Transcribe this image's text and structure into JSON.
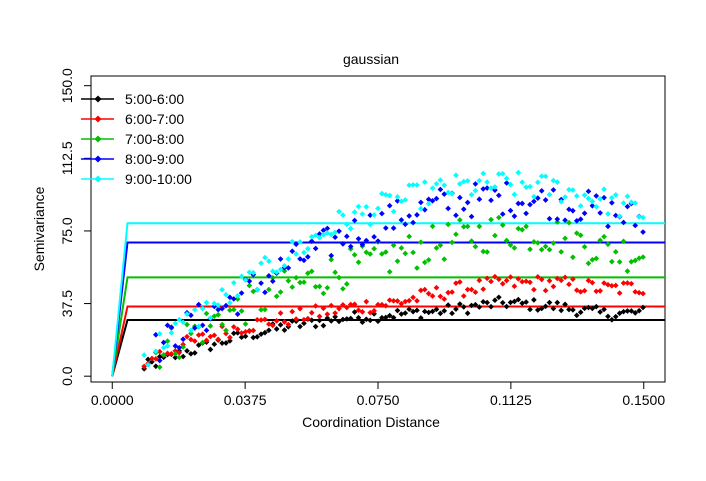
{
  "chart_data": {
    "type": "scatter",
    "title": "gaussian",
    "xlabel": "Coordination Distance",
    "ylabel": "Semivariance",
    "xlim": [
      -0.006,
      0.156
    ],
    "ylim": [
      -3,
      155
    ],
    "x_ticks": [
      0.0,
      0.0375,
      0.075,
      0.1125,
      0.15
    ],
    "x_tick_labels": [
      "0.0000",
      "0.0375",
      "0.0750",
      "0.1125",
      "0.1500"
    ],
    "y_ticks": [
      0.0,
      37.5,
      75.0,
      112.5,
      150.0
    ],
    "y_tick_labels": [
      "0.0",
      "37.5",
      "75.0",
      "112.5",
      "150.0"
    ],
    "grid": false,
    "legend_position": "top-left",
    "series": [
      {
        "name": "5:00-6:00",
        "color": "#000000",
        "sill": 29,
        "knots": [
          [
            0.009,
            5
          ],
          [
            0.02,
            12
          ],
          [
            0.035,
            20
          ],
          [
            0.05,
            26
          ],
          [
            0.065,
            30
          ],
          [
            0.08,
            32
          ],
          [
            0.095,
            34
          ],
          [
            0.11,
            38
          ],
          [
            0.125,
            36
          ],
          [
            0.14,
            32
          ],
          [
            0.15,
            33
          ]
        ],
        "spread": 3.0
      },
      {
        "name": "6:00-7:00",
        "color": "#ff0000",
        "sill": 36,
        "knots": [
          [
            0.009,
            8
          ],
          [
            0.02,
            16
          ],
          [
            0.035,
            25
          ],
          [
            0.05,
            30
          ],
          [
            0.065,
            35
          ],
          [
            0.08,
            38
          ],
          [
            0.095,
            44
          ],
          [
            0.11,
            48
          ],
          [
            0.125,
            48
          ],
          [
            0.14,
            45
          ],
          [
            0.15,
            46
          ]
        ],
        "spread": 4.0
      },
      {
        "name": "7:00-8:00",
        "color": "#00c000",
        "sill": 51,
        "knots": [
          [
            0.009,
            9
          ],
          [
            0.02,
            20
          ],
          [
            0.035,
            34
          ],
          [
            0.05,
            46
          ],
          [
            0.065,
            55
          ],
          [
            0.08,
            62
          ],
          [
            0.095,
            70
          ],
          [
            0.11,
            75
          ],
          [
            0.125,
            73
          ],
          [
            0.14,
            65
          ],
          [
            0.15,
            63
          ]
        ],
        "spread": 10.0
      },
      {
        "name": "8:00-9:00",
        "color": "#0000ff",
        "sill": 69,
        "knots": [
          [
            0.009,
            10
          ],
          [
            0.02,
            24
          ],
          [
            0.035,
            40
          ],
          [
            0.05,
            58
          ],
          [
            0.065,
            72
          ],
          [
            0.08,
            82
          ],
          [
            0.095,
            90
          ],
          [
            0.11,
            92
          ],
          [
            0.125,
            90
          ],
          [
            0.14,
            85
          ],
          [
            0.15,
            80
          ]
        ],
        "spread": 9.0
      },
      {
        "name": "9:00-10:00",
        "color": "#00ffff",
        "sill": 79,
        "knots": [
          [
            0.009,
            11
          ],
          [
            0.02,
            26
          ],
          [
            0.035,
            44
          ],
          [
            0.05,
            63
          ],
          [
            0.065,
            80
          ],
          [
            0.08,
            90
          ],
          [
            0.095,
            97
          ],
          [
            0.11,
            99
          ],
          [
            0.125,
            97
          ],
          [
            0.14,
            90
          ],
          [
            0.15,
            84
          ]
        ],
        "spread": 7.0
      }
    ]
  }
}
